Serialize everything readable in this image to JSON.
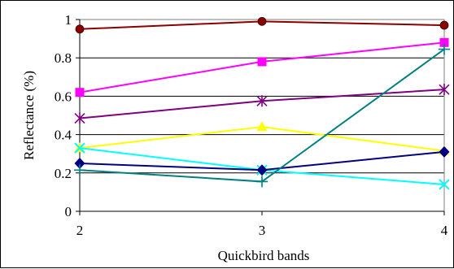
{
  "chart_data": {
    "type": "line",
    "title": "",
    "xlabel": "Quickbird bands",
    "ylabel": "Reflectance (%)",
    "x": [
      2,
      3,
      4
    ],
    "xticks": [
      "2",
      "3",
      "4"
    ],
    "yticks": [
      "0",
      "0.2",
      "0.4",
      "0.6",
      "0.8",
      "1"
    ],
    "ylim": [
      0,
      1
    ],
    "grid": true,
    "legend": "none",
    "series": [
      {
        "values": [
          0.95,
          0.99,
          0.97
        ],
        "color": "#8b0000",
        "marker": "circle"
      },
      {
        "values": [
          0.62,
          0.78,
          0.88
        ],
        "color": "#ff00ff",
        "marker": "square"
      },
      {
        "values": [
          0.485,
          0.575,
          0.635
        ],
        "color": "#800080",
        "marker": "asterisk"
      },
      {
        "values": [
          0.33,
          0.44,
          0.315
        ],
        "color": "#ffff00",
        "marker": "triangle"
      },
      {
        "values": [
          0.33,
          0.215,
          0.14
        ],
        "color": "#00ffff",
        "marker": "x"
      },
      {
        "values": [
          0.25,
          0.215,
          0.31
        ],
        "color": "#000080",
        "marker": "diamond"
      },
      {
        "values": [
          0.215,
          0.155,
          0.845
        ],
        "color": "#008080",
        "marker": "plus"
      }
    ]
  }
}
